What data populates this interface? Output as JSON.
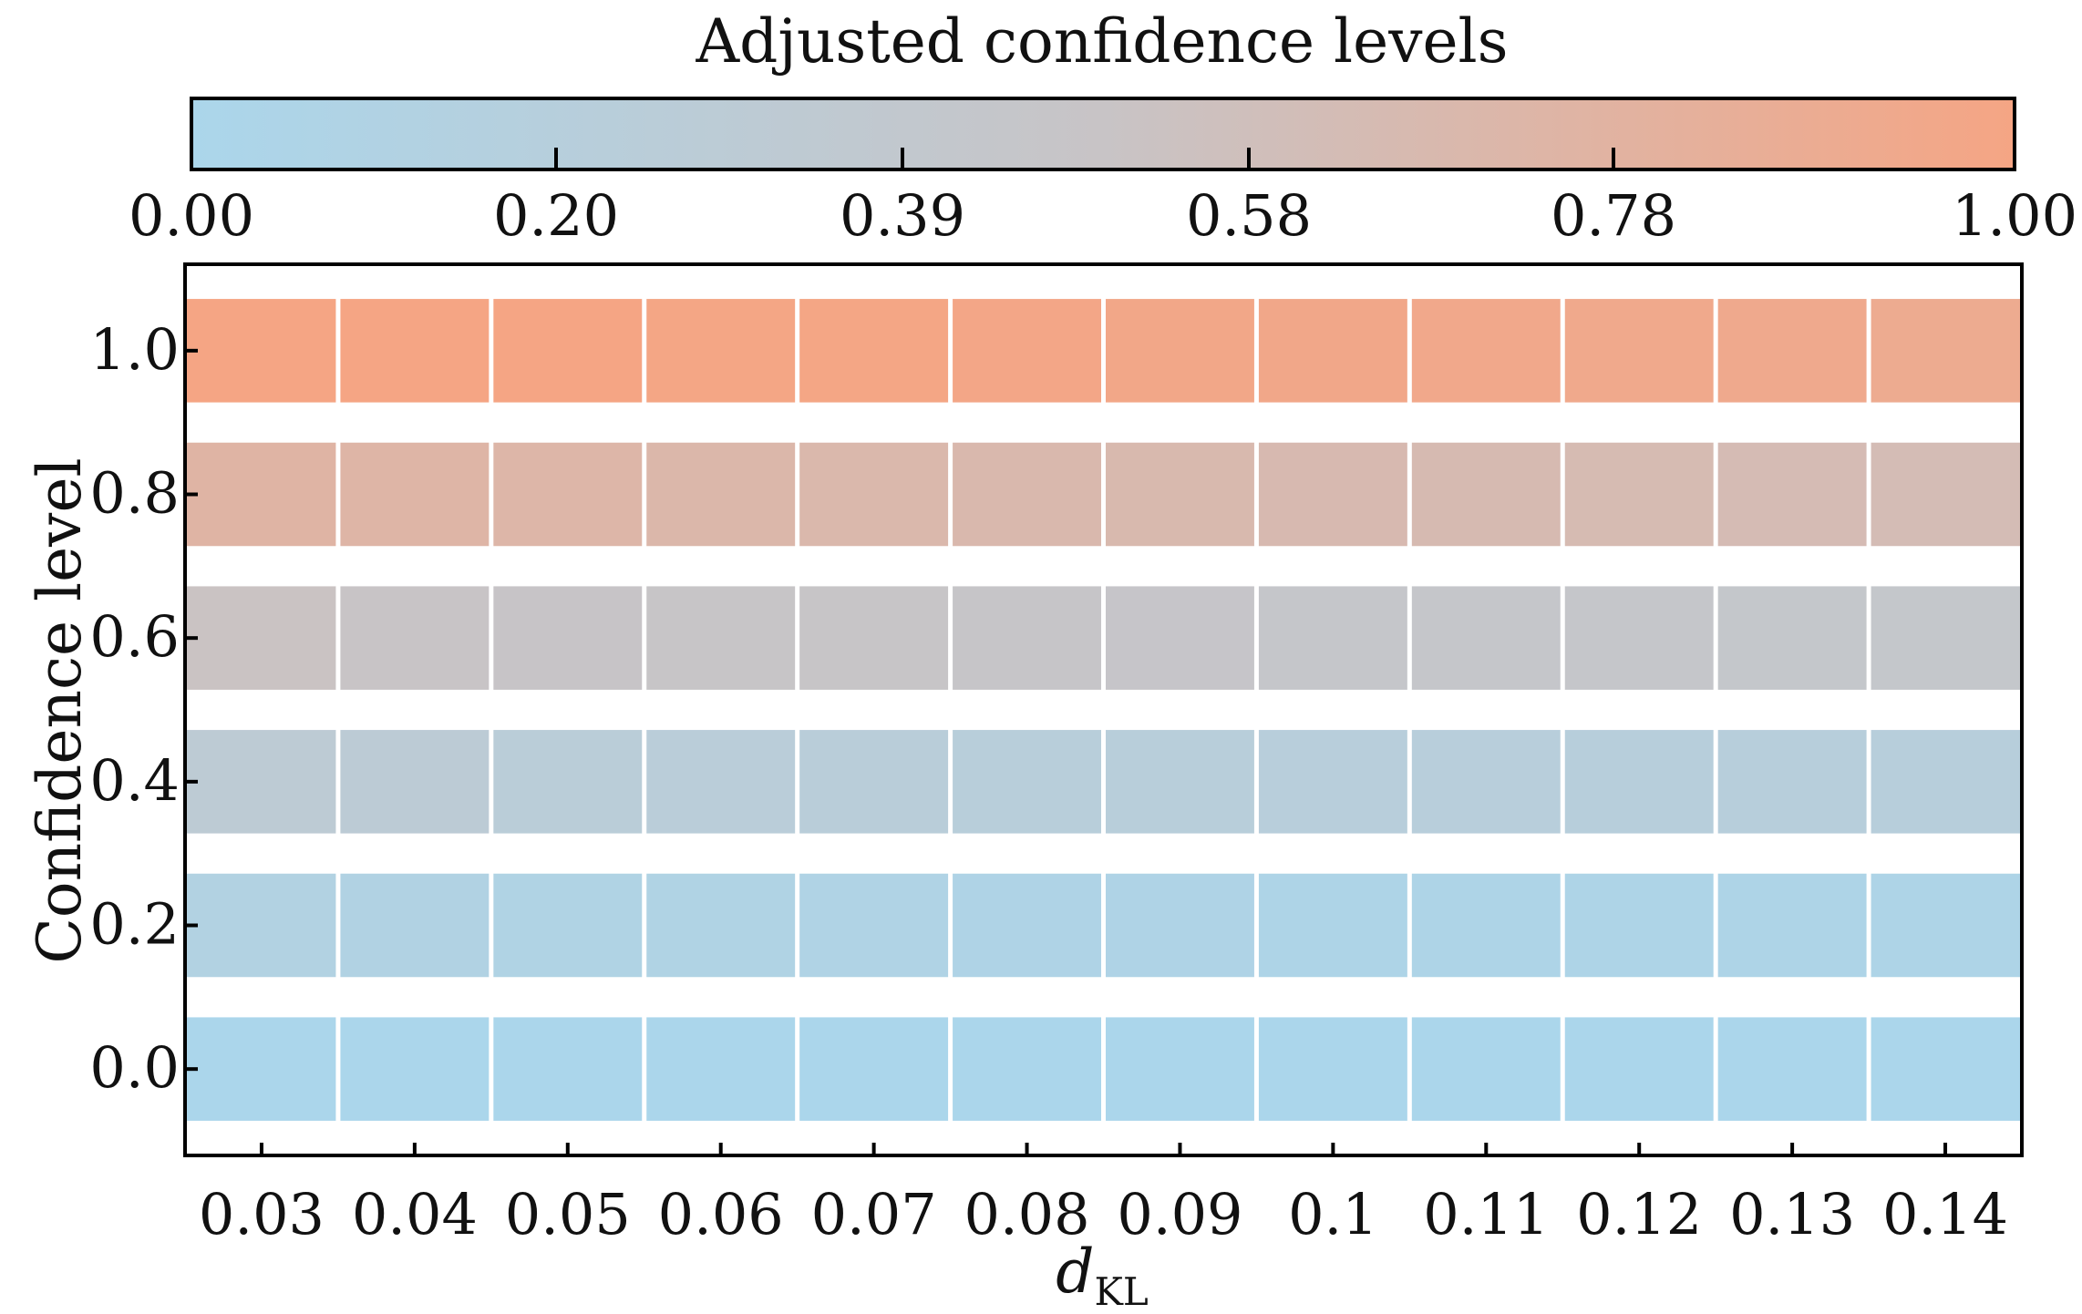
{
  "chart_data": {
    "type": "heatmap",
    "title": "Adjusted confidence levels",
    "xlabel": "d",
    "xlabel_sub": "KL",
    "ylabel": "Confidence level",
    "x_categories": [
      "0.03",
      "0.04",
      "0.05",
      "0.06",
      "0.07",
      "0.08",
      "0.09",
      "0.1",
      "0.11",
      "0.12",
      "0.13",
      "0.14"
    ],
    "y_categories": [
      "0.0",
      "0.2",
      "0.4",
      "0.6",
      "0.8",
      "1.0"
    ],
    "values": [
      [
        0.0,
        0.0,
        0.0,
        0.0,
        0.0,
        0.0,
        0.0,
        0.0,
        0.0,
        0.0,
        0.0,
        0.0
      ],
      [
        0.12,
        0.11,
        0.09,
        0.09,
        0.08,
        0.07,
        0.07,
        0.06,
        0.06,
        0.06,
        0.06,
        0.06
      ],
      [
        0.31,
        0.3,
        0.26,
        0.25,
        0.24,
        0.23,
        0.23,
        0.22,
        0.22,
        0.21,
        0.21,
        0.21
      ],
      [
        0.52,
        0.5,
        0.49,
        0.48,
        0.48,
        0.47,
        0.46,
        0.45,
        0.44,
        0.44,
        0.43,
        0.43
      ],
      [
        0.76,
        0.74,
        0.73,
        0.71,
        0.7,
        0.69,
        0.68,
        0.67,
        0.66,
        0.65,
        0.64,
        0.63
      ],
      [
        1.0,
        1.0,
        1.0,
        0.99,
        0.99,
        0.98,
        0.97,
        0.96,
        0.95,
        0.94,
        0.93,
        0.91
      ]
    ],
    "colorbar": {
      "min": 0,
      "max": 1,
      "ticks": [
        0.0,
        0.2,
        0.39,
        0.58,
        0.78,
        1.0
      ],
      "tick_labels": [
        "0.00",
        "0.20",
        "0.39",
        "0.58",
        "0.78",
        "1.00"
      ],
      "low_color": "#abd6eb",
      "mid_color": "#c8c4c6",
      "high_color": "#f5a584"
    }
  }
}
